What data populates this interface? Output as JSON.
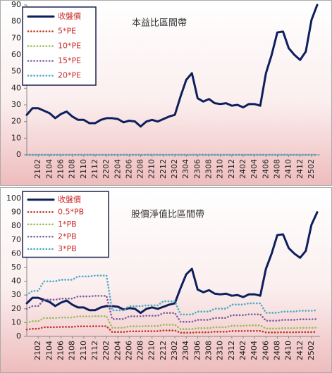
{
  "chart_data": [
    {
      "type": "line",
      "title": "本益比區間帶",
      "categories": [
        null,
        null,
        "2102",
        null,
        "2104",
        null,
        "2106",
        null,
        "2108",
        null,
        "2110",
        null,
        "2112",
        null,
        "2202",
        null,
        "2204",
        null,
        "2206",
        null,
        "2208",
        null,
        "2210",
        null,
        "2212",
        null,
        "2302",
        null,
        "2304",
        null,
        "2306",
        null,
        "2308",
        null,
        "2310",
        null,
        "2312",
        null,
        "2402",
        null,
        "2404",
        null,
        "2406",
        null,
        "2408",
        null,
        "2410",
        null,
        "2412",
        null,
        "2502",
        null
      ],
      "series": [
        {
          "name": "收盤價",
          "color": "#0d1f5c",
          "line_style": "solid",
          "values": [
            24,
            28,
            28,
            26.5,
            25,
            22,
            24.5,
            26,
            23,
            21,
            21,
            19,
            19,
            21,
            22,
            22,
            21.5,
            19.5,
            20.5,
            20,
            17,
            20,
            21,
            20,
            21.5,
            23,
            24,
            35,
            45,
            49,
            34,
            32,
            33.5,
            31,
            30.5,
            31,
            29.5,
            30,
            28.5,
            30.5,
            30.5,
            29.5,
            49,
            60,
            73.5,
            74,
            64,
            60,
            57,
            62,
            81,
            90
          ]
        },
        {
          "name": "5*PE",
          "color": "#c0392b",
          "line_style": "dotted",
          "values": [
            0,
            0,
            0,
            0,
            0,
            0,
            0,
            0,
            0,
            0,
            0,
            0,
            0,
            0,
            0,
            0,
            0,
            0,
            0,
            0,
            0,
            0,
            0,
            0,
            0,
            0,
            0,
            0,
            0,
            0,
            0,
            0,
            0,
            0,
            0,
            0,
            0,
            0,
            0,
            0,
            0,
            0,
            0,
            0,
            0,
            0,
            0,
            0,
            0,
            0,
            0,
            0
          ]
        },
        {
          "name": "10*PE",
          "color": "#9bbb59",
          "line_style": "dotted",
          "values": [
            0,
            0,
            0,
            0,
            0,
            0,
            0,
            0,
            0,
            0,
            0,
            0,
            0,
            0,
            0,
            0,
            0,
            0,
            0,
            0,
            0,
            0,
            0,
            0,
            0,
            0,
            0,
            0,
            0,
            0,
            0,
            0,
            0,
            0,
            0,
            0,
            0,
            0,
            0,
            0,
            0,
            0,
            0,
            0,
            0,
            0,
            0,
            0,
            0,
            0,
            0,
            0
          ]
        },
        {
          "name": "15*PE",
          "color": "#7f5fa0",
          "line_style": "dotted",
          "values": [
            0,
            0,
            0,
            0,
            0,
            0,
            0,
            0,
            0,
            0,
            0,
            0,
            0,
            0,
            0,
            0,
            0,
            0,
            0,
            0,
            0,
            0,
            0,
            0,
            0,
            0,
            0,
            0,
            0,
            0,
            0,
            0,
            0,
            0,
            0,
            0,
            0,
            0,
            0,
            0,
            0,
            0,
            0,
            0,
            0,
            0,
            0,
            0,
            0,
            0,
            0,
            0
          ]
        },
        {
          "name": "20*PE",
          "color": "#4bacc6",
          "line_style": "dotted",
          "values": [
            0,
            0,
            0,
            0,
            0,
            0,
            0,
            0,
            0,
            0,
            0,
            0,
            0,
            0,
            0,
            0,
            0,
            0,
            0,
            0,
            0,
            0,
            0,
            0,
            0,
            0,
            0,
            0,
            0,
            0,
            0,
            0,
            0,
            0,
            0,
            0,
            0,
            0,
            0,
            0,
            0,
            0,
            0,
            0,
            0,
            0,
            0,
            0,
            0,
            0,
            0,
            0
          ]
        }
      ],
      "ylim": [
        0,
        90
      ],
      "yticks": [
        0,
        10,
        20,
        30,
        40,
        50,
        60,
        70,
        80,
        90
      ],
      "grid": false,
      "legend": "top-left"
    },
    {
      "type": "line",
      "title": "股價淨值比區間帶",
      "categories": [
        null,
        null,
        "2102",
        null,
        "2104",
        null,
        "2106",
        null,
        "2108",
        null,
        "2110",
        null,
        "2112",
        null,
        "2202",
        null,
        "2204",
        null,
        "2206",
        null,
        "2208",
        null,
        "2210",
        null,
        "2212",
        null,
        "2302",
        null,
        "2304",
        null,
        "2306",
        null,
        "2308",
        null,
        "2310",
        null,
        "2312",
        null,
        "2402",
        null,
        "2404",
        null,
        "2406",
        null,
        "2408",
        null,
        "2410",
        null,
        "2412",
        null,
        "2502",
        null
      ],
      "series": [
        {
          "name": "收盤價",
          "color": "#0d1f5c",
          "line_style": "solid",
          "values": [
            24,
            28,
            28,
            26.5,
            25,
            22,
            24.5,
            26,
            23,
            21,
            21,
            19,
            19,
            21,
            22,
            22,
            21.5,
            19.5,
            20.5,
            20,
            17,
            20,
            21,
            20,
            21.5,
            23,
            24,
            35,
            45,
            49,
            34,
            32,
            33.5,
            31,
            30.5,
            31,
            29.5,
            30,
            28.5,
            30.5,
            30.5,
            29.5,
            49,
            60,
            73.5,
            74,
            64,
            60,
            57,
            62,
            81,
            90
          ]
        },
        {
          "name": "0.5*PB",
          "color": "#c0392b",
          "line_style": "dotted",
          "values": [
            5,
            5.5,
            5.5,
            6.7,
            6.7,
            6.7,
            6.9,
            6.9,
            6.9,
            7.3,
            7.3,
            7.3,
            7.4,
            7.4,
            7.4,
            3.2,
            3.2,
            3.2,
            3.7,
            3.7,
            3.7,
            3.8,
            3.8,
            3.8,
            4.3,
            4.3,
            4.3,
            2.7,
            2.7,
            2.7,
            3,
            3,
            3,
            3.4,
            3.4,
            3.4,
            3.9,
            3.9,
            3.9,
            4,
            4,
            4,
            2.9,
            2.9,
            2.9,
            3,
            3,
            3,
            3.1,
            3.1,
            3.1,
            3.2
          ]
        },
        {
          "name": "1*PB",
          "color": "#9bbb59",
          "line_style": "dotted",
          "values": [
            10,
            11,
            11,
            13.3,
            13.3,
            13.3,
            13.7,
            13.7,
            13.7,
            14.5,
            14.5,
            14.5,
            14.7,
            14.7,
            14.7,
            6.3,
            6.3,
            6.3,
            7.3,
            7.3,
            7.3,
            7.5,
            7.5,
            7.5,
            8.5,
            8.5,
            8.5,
            5.3,
            5.3,
            5.3,
            6,
            6,
            6,
            6.7,
            6.7,
            6.7,
            7.7,
            7.7,
            7.7,
            8,
            8,
            8,
            5.7,
            5.7,
            5.7,
            6,
            6,
            6,
            6.2,
            6.2,
            6.2,
            6.3
          ]
        },
        {
          "name": "2*PB",
          "color": "#7f5fa0",
          "line_style": "dotted",
          "values": [
            20,
            22,
            22,
            26.6,
            26.6,
            26.6,
            27.4,
            27.4,
            27.4,
            29,
            29,
            29,
            29.4,
            29.4,
            29.4,
            12.6,
            12.6,
            12.6,
            14.6,
            14.6,
            14.6,
            15,
            15,
            15,
            17,
            17,
            17,
            10.6,
            10.6,
            10.6,
            12,
            12,
            12,
            13.4,
            13.4,
            13.4,
            15.4,
            15.4,
            15.4,
            16,
            16,
            16,
            11.4,
            11.4,
            11.4,
            12,
            12,
            12,
            12.4,
            12.4,
            12.4,
            12.6
          ]
        },
        {
          "name": "3*PB",
          "color": "#4bacc6",
          "line_style": "dotted",
          "values": [
            30,
            33,
            33,
            39.9,
            39.9,
            39.9,
            41.1,
            41.1,
            41.1,
            43.5,
            43.5,
            43.5,
            44.1,
            44.1,
            44.1,
            18.9,
            18.9,
            18.9,
            21.9,
            21.9,
            21.9,
            22.5,
            22.5,
            22.5,
            25.5,
            25.5,
            25.5,
            15.9,
            15.9,
            15.9,
            18,
            18,
            18,
            20.1,
            20.1,
            20.1,
            23.1,
            23.1,
            23.1,
            24,
            24,
            24,
            17.1,
            17.1,
            17.1,
            18,
            18,
            18,
            18.6,
            18.6,
            18.6,
            18.9
          ]
        }
      ],
      "ylim": [
        0,
        100
      ],
      "yticks": [
        0,
        10,
        20,
        30,
        40,
        50,
        60,
        70,
        80,
        90,
        100
      ],
      "grid": false,
      "legend": "top-left"
    }
  ]
}
